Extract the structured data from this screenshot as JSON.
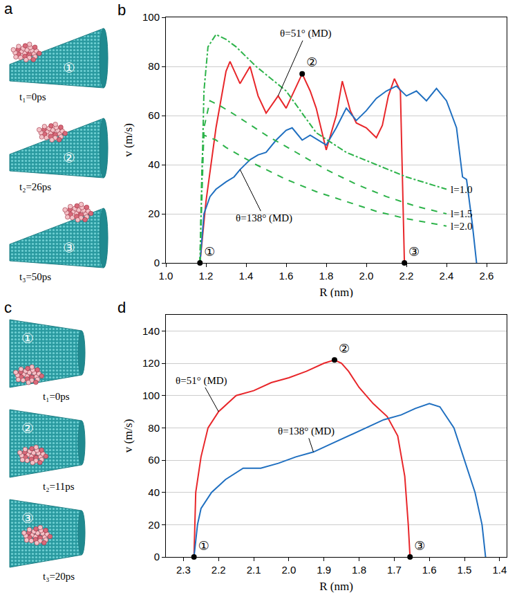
{
  "snapshots": [
    {
      "panel": "a",
      "frames": [
        {
          "marker": "①",
          "label": "t₁=0ps"
        },
        {
          "marker": "②",
          "label": "t₂=26ps"
        },
        {
          "marker": "③",
          "label": "t₃=50ps"
        }
      ]
    },
    {
      "panel": "c",
      "frames": [
        {
          "marker": "①",
          "label": "t₁=0ps"
        },
        {
          "marker": "②",
          "label": "t₂=11ps"
        },
        {
          "marker": "③",
          "label": "t₃=20ps"
        }
      ]
    }
  ],
  "chart_data": [
    {
      "panel": "b",
      "type": "line",
      "x_label": "R (nm)",
      "y_label": "v (m/s)",
      "xlim": [
        1.0,
        2.7
      ],
      "xticks": [
        {
          "value": 1,
          "label": "1.0"
        },
        1.2,
        1.4,
        1.6,
        1.8,
        {
          "value": 2,
          "label": "2.0"
        },
        2.2,
        2.4,
        2.6
      ],
      "ylim": [
        0,
        100
      ],
      "yticks": [
        0,
        20,
        40,
        60,
        80,
        100
      ],
      "grid": "y",
      "series": [
        {
          "name": "θ=51° (MD)",
          "color": "#e8262a",
          "line_style": "solid",
          "x": [
            1.17,
            1.2,
            1.25,
            1.3,
            1.32,
            1.37,
            1.42,
            1.46,
            1.5,
            1.56,
            1.6,
            1.64,
            1.68,
            1.72,
            1.75,
            1.8,
            1.85,
            1.88,
            1.92,
            1.95,
            2.0,
            2.05,
            2.08,
            2.11,
            2.14,
            2.17,
            2.19
          ],
          "values": [
            0,
            25,
            55,
            78,
            82,
            73,
            80,
            68,
            61,
            68,
            63,
            70,
            77,
            70,
            63,
            46,
            60,
            74,
            62,
            57,
            55,
            51,
            56,
            68,
            75,
            70,
            0
          ]
        },
        {
          "name": "θ=138° (MD)",
          "color": "#1f6fc0",
          "line_style": "solid",
          "x": [
            1.17,
            1.19,
            1.22,
            1.25,
            1.3,
            1.34,
            1.37,
            1.42,
            1.46,
            1.5,
            1.55,
            1.6,
            1.63,
            1.68,
            1.72,
            1.76,
            1.8,
            1.85,
            1.9,
            1.95,
            2.0,
            2.05,
            2.1,
            2.15,
            2.2,
            2.25,
            2.3,
            2.35,
            2.4,
            2.45,
            2.48,
            2.5,
            2.53,
            2.55
          ],
          "values": [
            0,
            20,
            27,
            30,
            33,
            35,
            38,
            42,
            44,
            45,
            50,
            54,
            55,
            50,
            52,
            50,
            48,
            55,
            63,
            58,
            62,
            67,
            70,
            72,
            68,
            70,
            66,
            71,
            66,
            55,
            35,
            34,
            15,
            0
          ]
        },
        {
          "name": "l=1.0",
          "color": "#2db34a",
          "line_style": "dashdot",
          "x": [
            1.17,
            1.19,
            1.21,
            1.25,
            1.3,
            1.35,
            1.45,
            1.6,
            1.75,
            1.9,
            2.05,
            2.2,
            2.4
          ],
          "values": [
            0,
            70,
            88,
            93,
            91,
            88,
            80,
            70,
            53,
            45,
            40,
            35,
            30
          ]
        },
        {
          "name": "l=1.5",
          "color": "#2db34a",
          "line_style": "dash",
          "x": [
            1.17,
            1.19,
            1.22,
            1.27,
            1.35,
            1.5,
            1.65,
            1.8,
            1.95,
            2.1,
            2.25,
            2.4
          ],
          "values": [
            0,
            55,
            66,
            64,
            60,
            52,
            45,
            38,
            32,
            27,
            23,
            20
          ]
        },
        {
          "name": "l=2.0",
          "color": "#2db34a",
          "line_style": "dash",
          "x": [
            1.17,
            1.18,
            1.19,
            1.25,
            1.3,
            1.45,
            1.6,
            1.75,
            1.9,
            2.05,
            2.2,
            2.4
          ],
          "values": [
            0,
            40,
            52,
            50,
            47,
            40,
            34,
            29,
            25,
            21,
            18,
            15
          ]
        }
      ],
      "points": [
        {
          "label": "①",
          "x": 1.17,
          "y": 0
        },
        {
          "label": "②",
          "x": 1.68,
          "y": 77
        },
        {
          "label": "③",
          "x": 2.19,
          "y": 0
        }
      ]
    },
    {
      "panel": "d",
      "type": "line",
      "x_label": "R (nm)",
      "y_label": "v (m/s)",
      "xlim": [
        2.35,
        1.38
      ],
      "xticks": [
        2.3,
        2.2,
        2.1,
        {
          "value": 2,
          "label": "2.0"
        },
        1.9,
        1.8,
        1.7,
        1.6,
        1.5,
        1.4
      ],
      "ylim": [
        0,
        150
      ],
      "yticks": [
        0,
        20,
        40,
        60,
        80,
        100,
        120,
        140
      ],
      "grid": "y",
      "series": [
        {
          "name": "θ=51° (MD)",
          "color": "#e8262a",
          "line_style": "solid",
          "x": [
            2.27,
            2.265,
            2.25,
            2.23,
            2.2,
            2.15,
            2.1,
            2.05,
            2.0,
            1.95,
            1.9,
            1.87,
            1.85,
            1.83,
            1.8,
            1.76,
            1.72,
            1.69,
            1.67,
            1.66,
            1.655
          ],
          "values": [
            0,
            40,
            62,
            80,
            90,
            100,
            103,
            108,
            111,
            115,
            120,
            122,
            120,
            115,
            105,
            95,
            87,
            75,
            50,
            20,
            0
          ]
        },
        {
          "name": "θ=138° (MD)",
          "color": "#1f6fc0",
          "line_style": "solid",
          "x": [
            2.27,
            2.26,
            2.25,
            2.22,
            2.18,
            2.13,
            2.08,
            2.03,
            1.98,
            1.93,
            1.88,
            1.83,
            1.78,
            1.73,
            1.68,
            1.64,
            1.6,
            1.57,
            1.53,
            1.5,
            1.47,
            1.45,
            1.44
          ],
          "values": [
            0,
            20,
            30,
            40,
            48,
            55,
            55,
            58,
            62,
            65,
            70,
            75,
            80,
            85,
            88,
            92,
            95,
            93,
            80,
            60,
            40,
            20,
            0
          ]
        }
      ],
      "points": [
        {
          "label": "①",
          "x": 2.27,
          "y": 0
        },
        {
          "label": "②",
          "x": 1.87,
          "y": 122
        },
        {
          "label": "③",
          "x": 1.655,
          "y": 0
        }
      ]
    }
  ]
}
